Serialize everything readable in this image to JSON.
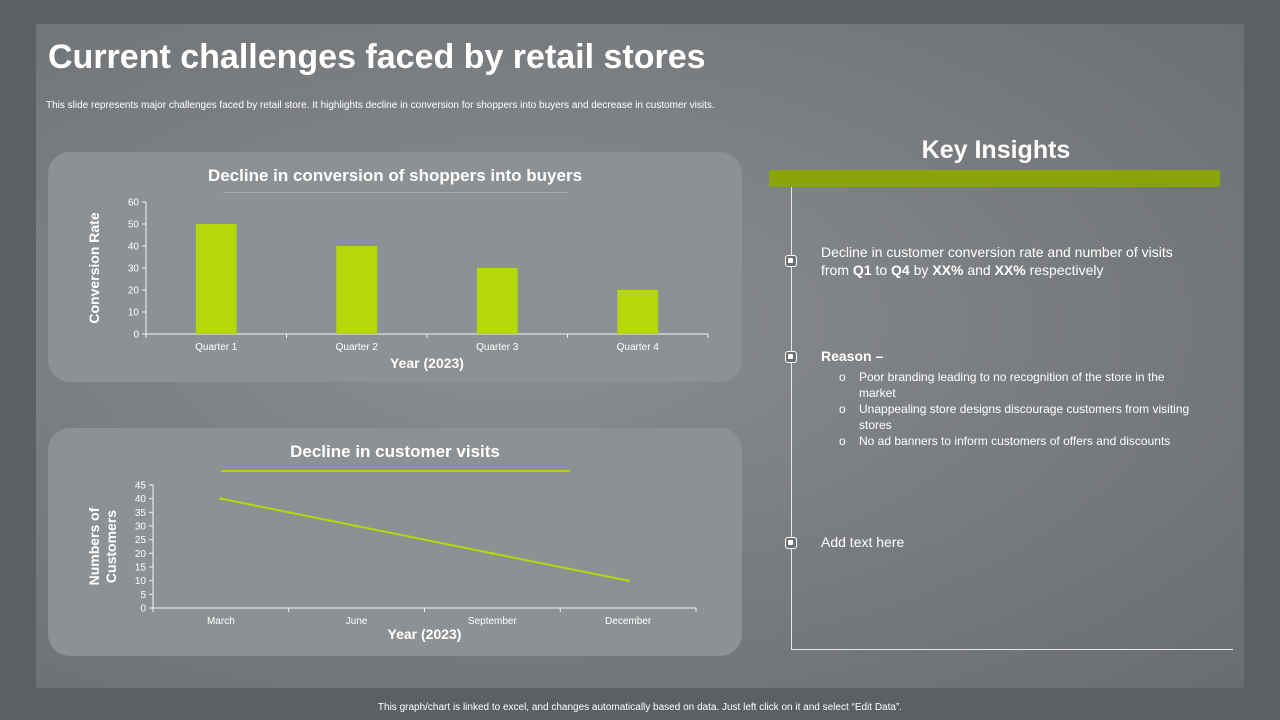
{
  "slide": {
    "title": "Current challenges faced by retail stores",
    "subtitle": "This slide represents major challenges faced by retail store. It highlights decline in conversion for shoppers into buyers and decrease in customer visits."
  },
  "chart_data": [
    {
      "type": "bar",
      "title": "Decline in conversion of shoppers into buyers",
      "xlabel": "Year (2023)",
      "ylabel": "Conversion Rate",
      "categories": [
        "Quarter 1",
        "Quarter 2",
        "Quarter 3",
        "Quarter 4"
      ],
      "values": [
        50,
        40,
        30,
        20
      ],
      "ylim": [
        0,
        60
      ],
      "yticks": [
        0,
        10,
        20,
        30,
        40,
        50,
        60
      ],
      "grid": false,
      "color": "#b5d80b"
    },
    {
      "type": "line",
      "title": "Decline in customer visits",
      "xlabel": "Year (2023)",
      "ylabel": "Numbers of Customers",
      "categories": [
        "March",
        "June",
        "September",
        "December"
      ],
      "values": [
        40,
        30,
        20,
        10
      ],
      "ylim": [
        0,
        45
      ],
      "yticks": [
        0,
        5,
        10,
        15,
        20,
        25,
        30,
        35,
        40,
        45
      ],
      "grid": false,
      "color": "#b5d80b"
    }
  ],
  "insights": {
    "title": "Key Insights",
    "accent": "#8aa50a",
    "item1": {
      "p1": "Decline in customer conversion rate and number of visits from ",
      "b1": "Q1",
      "p2": " to ",
      "b2": "Q4",
      "p3": " by ",
      "b3": "XX%",
      "p4": " and  ",
      "b4": "XX%",
      "p5": " respectively"
    },
    "reason_title": "Reason –",
    "reasons": [
      "Poor branding leading to no recognition of the store in the market",
      "Unappealing store designs discourage customers from visiting stores",
      "No ad banners to inform customers of offers and discounts"
    ],
    "item3": "Add text here",
    "bullet_glyph": "o"
  },
  "footer": "This graph/chart is linked to excel, and changes automatically based on data. Just left click on it and select “Edit Data”."
}
